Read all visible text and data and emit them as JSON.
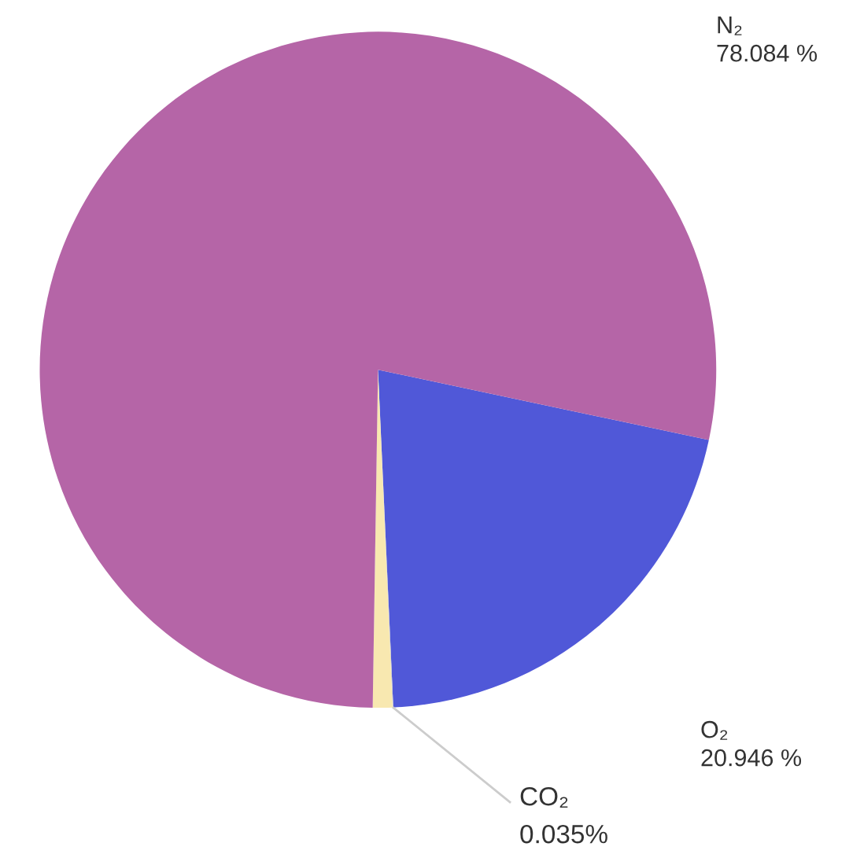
{
  "chart_data": {
    "type": "pie",
    "categories": [
      "N₂",
      "O₂",
      "CO₂",
      null
    ],
    "values": [
      78.084,
      20.946,
      0.035,
      0.935
    ],
    "value_labels": [
      "78.084 %",
      "20.946 %",
      "0.035%",
      null
    ],
    "colors": [
      "#b565a7",
      "#5058d8",
      "#c8c8c8",
      "#f8e8b0"
    ]
  }
}
